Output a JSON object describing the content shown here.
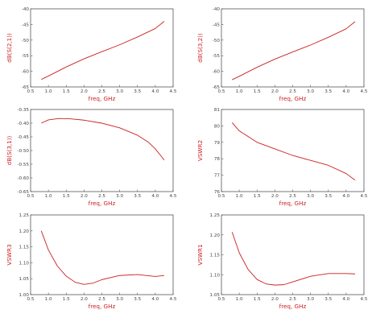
{
  "colors": {
    "trace": "#cc1f1f",
    "axis_label": "#cc1f1f",
    "frame": "#555555"
  },
  "chart_data": [
    {
      "type": "line",
      "xlabel": "freq, GHz",
      "ylabel": "dB(S(2,1))",
      "xlim": [
        0.5,
        4.5
      ],
      "ylim": [
        -65,
        -40
      ],
      "xticks": [
        "0.5",
        "1.0",
        "1.5",
        "2.0",
        "2.5",
        "3.0",
        "3.5",
        "4.0",
        "4.5"
      ],
      "yticks": [
        "-65",
        "-60",
        "-55",
        "-50",
        "-45",
        "-40"
      ],
      "grid": false,
      "x": [
        0.8,
        1.0,
        1.5,
        2.0,
        2.5,
        3.0,
        3.5,
        4.0,
        4.25
      ],
      "y": [
        -62.6,
        -61.5,
        -58.6,
        -56.0,
        -53.7,
        -51.5,
        -49.0,
        -46.3,
        -44.0
      ]
    },
    {
      "type": "line",
      "xlabel": "freq, GHz",
      "ylabel": "dB(S(3,2))",
      "xlim": [
        0.5,
        4.5
      ],
      "ylim": [
        -65,
        -40
      ],
      "xticks": [
        "0.5",
        "1.0",
        "1.5",
        "2.0",
        "2.5",
        "3.0",
        "3.5",
        "4.0",
        "4.5"
      ],
      "yticks": [
        "-65",
        "-60",
        "-55",
        "-50",
        "-45",
        "-40"
      ],
      "grid": false,
      "x": [
        0.8,
        1.0,
        1.5,
        2.0,
        2.5,
        3.0,
        3.5,
        4.0,
        4.25
      ],
      "y": [
        -62.7,
        -61.6,
        -58.7,
        -56.1,
        -53.8,
        -51.6,
        -49.1,
        -46.4,
        -44.1
      ]
    },
    {
      "type": "line",
      "xlabel": "freq, GHz",
      "ylabel": "dB(S(3,1))",
      "xlim": [
        0.5,
        4.5
      ],
      "ylim": [
        -0.65,
        -0.35
      ],
      "xticks": [
        "0.5",
        "1.0",
        "1.5",
        "2.0",
        "2.5",
        "3.0",
        "3.5",
        "4.0",
        "4.5"
      ],
      "yticks": [
        "-0.65",
        "-0.60",
        "-0.55",
        "-0.50",
        "-0.45",
        "-0.40",
        "-0.35"
      ],
      "grid": false,
      "x": [
        0.8,
        1.0,
        1.3,
        1.6,
        2.0,
        2.5,
        3.0,
        3.5,
        3.8,
        4.0,
        4.15,
        4.25
      ],
      "y": [
        -0.4,
        -0.388,
        -0.383,
        -0.384,
        -0.389,
        -0.4,
        -0.417,
        -0.444,
        -0.469,
        -0.494,
        -0.518,
        -0.535
      ]
    },
    {
      "type": "line",
      "xlabel": "freq, GHz",
      "ylabel": "VSWR2",
      "xlim": [
        0.5,
        4.5
      ],
      "ylim": [
        76,
        81
      ],
      "xticks": [
        "0.5",
        "1.0",
        "1.5",
        "2.0",
        "2.5",
        "3.0",
        "3.5",
        "4.0",
        "4.5"
      ],
      "yticks": [
        "76",
        "77",
        "78",
        "79",
        "80",
        "81"
      ],
      "grid": false,
      "x": [
        0.8,
        1.0,
        1.5,
        2.0,
        2.5,
        3.0,
        3.5,
        4.0,
        4.25
      ],
      "y": [
        80.2,
        79.7,
        79.0,
        78.6,
        78.2,
        77.9,
        77.6,
        77.1,
        76.7
      ]
    },
    {
      "type": "line",
      "xlabel": "freq, GHz",
      "ylabel": "VSWR3",
      "xlim": [
        0.5,
        4.5
      ],
      "ylim": [
        1.0,
        1.25
      ],
      "xticks": [
        "0.5",
        "1.0",
        "1.5",
        "2.0",
        "2.5",
        "3.0",
        "3.5",
        "4.0",
        "4.5"
      ],
      "yticks": [
        "1.00",
        "1.05",
        "1.10",
        "1.15",
        "1.20",
        "1.25"
      ],
      "grid": false,
      "x": [
        0.8,
        1.0,
        1.25,
        1.5,
        1.75,
        2.0,
        2.25,
        2.5,
        3.0,
        3.5,
        4.0,
        4.25
      ],
      "y": [
        1.2,
        1.14,
        1.09,
        1.058,
        1.039,
        1.032,
        1.036,
        1.047,
        1.06,
        1.063,
        1.057,
        1.06
      ]
    },
    {
      "type": "line",
      "xlabel": "freq, GHz",
      "ylabel": "VSWR1",
      "xlim": [
        0.5,
        4.5
      ],
      "ylim": [
        1.05,
        1.25
      ],
      "xticks": [
        "0.5",
        "1.0",
        "1.5",
        "2.0",
        "2.5",
        "3.0",
        "3.5",
        "4.0",
        "4.5"
      ],
      "yticks": [
        "1.05",
        "1.10",
        "1.15",
        "1.20",
        "1.25"
      ],
      "grid": false,
      "x": [
        0.8,
        1.0,
        1.25,
        1.5,
        1.75,
        2.0,
        2.25,
        2.5,
        3.0,
        3.5,
        4.0,
        4.25
      ],
      "y": [
        1.207,
        1.155,
        1.113,
        1.088,
        1.077,
        1.074,
        1.075,
        1.082,
        1.096,
        1.103,
        1.103,
        1.102
      ]
    }
  ]
}
